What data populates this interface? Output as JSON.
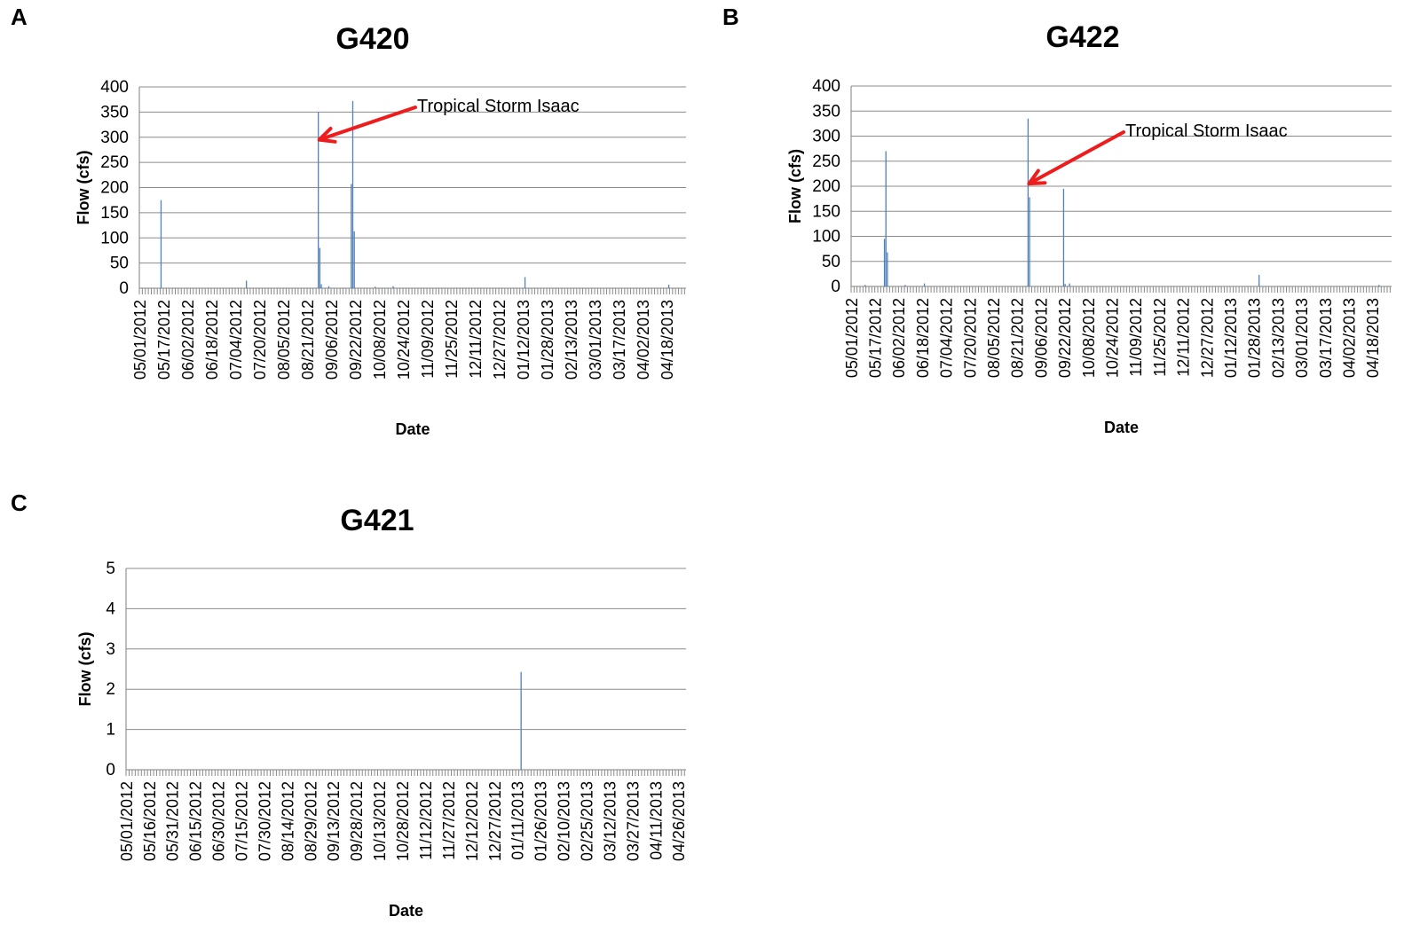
{
  "panels": {
    "a": {
      "letter": "A"
    },
    "b": {
      "letter": "B"
    },
    "c": {
      "letter": "C"
    }
  },
  "chart_data": [
    {
      "id": "a",
      "type": "bar",
      "title": "G420",
      "xlabel": "Date",
      "ylabel": "Flow (cfs)",
      "ylim": [
        0,
        400
      ],
      "yticks": [
        0,
        50,
        100,
        150,
        200,
        250,
        300,
        350,
        400
      ],
      "grid": true,
      "legend": "none",
      "bar_color": "#4f81bd",
      "x_start": "05/01/2012",
      "x_end": "04/30/2013",
      "x_tick_labels": [
        "05/01/2012",
        "05/17/2012",
        "06/02/2012",
        "06/18/2012",
        "07/04/2012",
        "07/20/2012",
        "08/05/2012",
        "08/21/2012",
        "09/06/2012",
        "09/22/2012",
        "10/08/2012",
        "10/24/2012",
        "11/09/2012",
        "11/25/2012",
        "12/11/2012",
        "12/27/2012",
        "01/12/2013",
        "01/28/2013",
        "02/13/2013",
        "03/01/2013",
        "03/17/2013",
        "04/02/2013",
        "04/18/2013"
      ],
      "points": [
        {
          "date": "05/15/2012",
          "value": 175
        },
        {
          "date": "07/11/2012",
          "value": 15
        },
        {
          "date": "08/28/2012",
          "value": 350
        },
        {
          "date": "08/29/2012",
          "value": 80
        },
        {
          "date": "08/30/2012",
          "value": 8
        },
        {
          "date": "09/04/2012",
          "value": 4
        },
        {
          "date": "09/19/2012",
          "value": 207
        },
        {
          "date": "09/20/2012",
          "value": 372
        },
        {
          "date": "09/21/2012",
          "value": 113
        },
        {
          "date": "10/05/2012",
          "value": 3
        },
        {
          "date": "10/17/2012",
          "value": 4
        },
        {
          "date": "01/13/2013",
          "value": 22
        },
        {
          "date": "04/19/2013",
          "value": 7
        }
      ],
      "annotation": {
        "text": "Tropical Storm Isaac",
        "target_date": "08/28/2012",
        "target_value": 295,
        "color": "#ee1c1c"
      }
    },
    {
      "id": "b",
      "type": "bar",
      "title": "G422",
      "xlabel": "Date",
      "ylabel": "Flow (cfs)",
      "ylim": [
        0,
        400
      ],
      "yticks": [
        0,
        50,
        100,
        150,
        200,
        250,
        300,
        350,
        400
      ],
      "grid": true,
      "legend": "none",
      "bar_color": "#4f81bd",
      "x_start": "05/01/2012",
      "x_end": "04/30/2013",
      "x_tick_labels": [
        "05/01/2012",
        "05/17/2012",
        "06/02/2012",
        "06/18/2012",
        "07/04/2012",
        "07/20/2012",
        "08/05/2012",
        "08/21/2012",
        "09/06/2012",
        "09/22/2012",
        "10/08/2012",
        "10/24/2012",
        "11/09/2012",
        "11/25/2012",
        "12/11/2012",
        "12/27/2012",
        "01/12/2013",
        "01/28/2013",
        "02/13/2013",
        "03/01/2013",
        "03/17/2013",
        "04/02/2013",
        "04/18/2013"
      ],
      "points": [
        {
          "date": "05/10/2012",
          "value": 3
        },
        {
          "date": "05/23/2012",
          "value": 95
        },
        {
          "date": "05/24/2012",
          "value": 270
        },
        {
          "date": "05/25/2012",
          "value": 68
        },
        {
          "date": "06/06/2012",
          "value": 3
        },
        {
          "date": "06/19/2012",
          "value": 6
        },
        {
          "date": "08/28/2012",
          "value": 335
        },
        {
          "date": "08/29/2012",
          "value": 178
        },
        {
          "date": "09/21/2012",
          "value": 195
        },
        {
          "date": "09/22/2012",
          "value": 5
        },
        {
          "date": "09/25/2012",
          "value": 6
        },
        {
          "date": "01/31/2013",
          "value": 23
        },
        {
          "date": "04/22/2013",
          "value": 3
        }
      ],
      "annotation": {
        "text": "Tropical Storm Isaac",
        "target_date": "08/28/2012",
        "target_value": 205,
        "color": "#ee1c1c"
      }
    },
    {
      "id": "c",
      "type": "bar",
      "title": "G421",
      "xlabel": "Date",
      "ylabel": "Flow (cfs)",
      "ylim": [
        0,
        5
      ],
      "yticks": [
        0,
        1,
        2,
        3,
        4,
        5
      ],
      "grid": true,
      "legend": "none",
      "bar_color": "#4f81bd",
      "x_start": "05/01/2012",
      "x_end": "04/30/2013",
      "x_tick_labels": [
        "05/01/2012",
        "05/16/2012",
        "05/31/2012",
        "06/15/2012",
        "06/30/2012",
        "07/15/2012",
        "07/30/2012",
        "08/14/2012",
        "08/29/2012",
        "09/13/2012",
        "09/28/2012",
        "10/13/2012",
        "10/28/2012",
        "11/12/2012",
        "11/27/2012",
        "12/12/2012",
        "12/27/2012",
        "01/11/2013",
        "01/26/2013",
        "02/10/2013",
        "02/25/2013",
        "03/12/2013",
        "03/27/2013",
        "04/11/2013",
        "04/26/2013"
      ],
      "points": [
        {
          "date": "01/13/2013",
          "value": 2.43
        }
      ]
    }
  ]
}
